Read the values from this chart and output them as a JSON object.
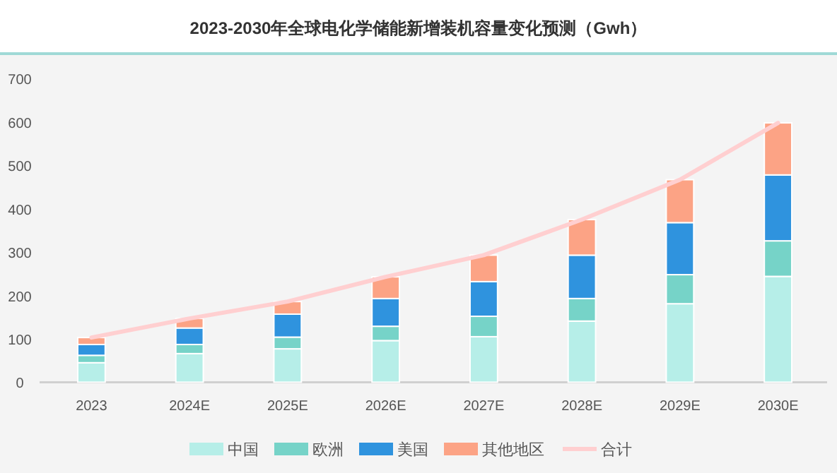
{
  "chart_data": {
    "type": "bar",
    "title": "2023-2030年全球电化学储能新增装机容量变化预测（Gwh）",
    "categories": [
      "2023",
      "2024E",
      "2025E",
      "2026E",
      "2027E",
      "2028E",
      "2029E",
      "2030E"
    ],
    "stacked": true,
    "ylim": [
      0,
      700
    ],
    "yticks": [
      0,
      100,
      200,
      300,
      400,
      500,
      600,
      700
    ],
    "grid": false,
    "legend": "bottom",
    "series": [
      {
        "name": "中国",
        "color": "#b6eee8",
        "values": [
          45,
          66,
          77,
          96,
          105,
          141,
          181,
          244
        ]
      },
      {
        "name": "欧洲",
        "color": "#76d3c8",
        "values": [
          17,
          21,
          27,
          33,
          47,
          52,
          67,
          82
        ]
      },
      {
        "name": "美国",
        "color": "#2f93de",
        "values": [
          25,
          38,
          53,
          64,
          80,
          100,
          120,
          152
        ]
      },
      {
        "name": "其他地区",
        "color": "#fca385",
        "values": [
          16,
          22,
          29,
          50,
          61,
          82,
          99,
          120
        ]
      },
      {
        "name": "合计",
        "type": "line",
        "color": "#ffcfd0",
        "values": [
          103,
          147,
          186,
          243,
          293,
          375,
          467,
          598
        ]
      }
    ]
  }
}
